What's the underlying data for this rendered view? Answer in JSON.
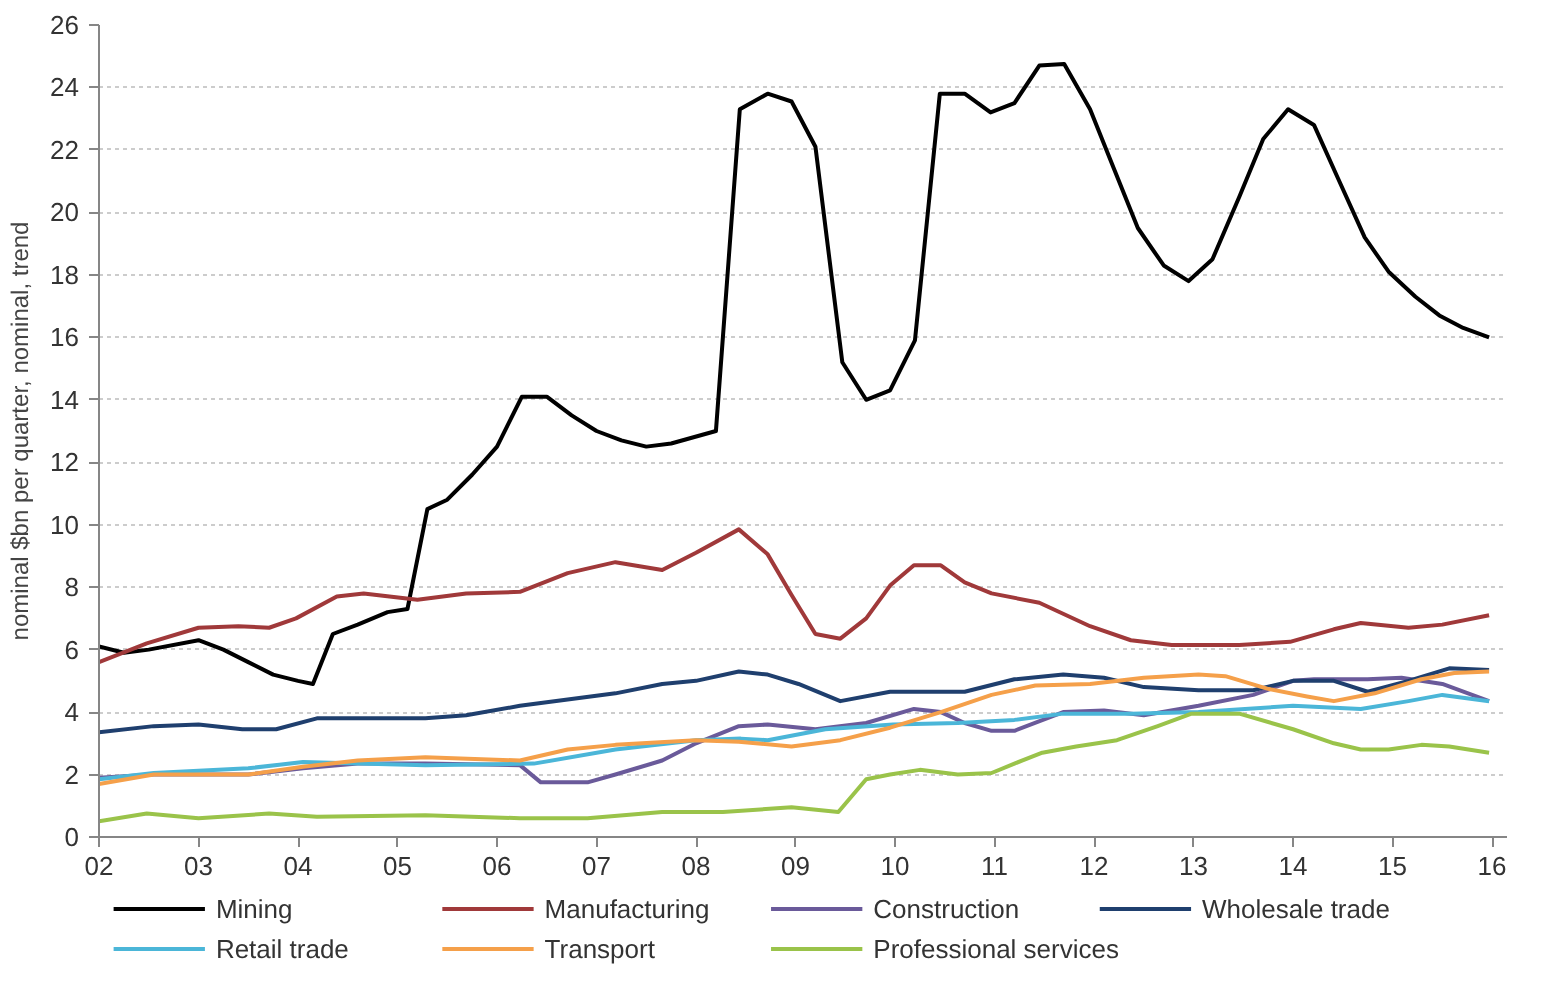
{
  "chart_data": {
    "type": "line",
    "ylabel": "nominal $bn per quarter, nominal, trend",
    "xlim": [
      2002,
      2016.15
    ],
    "ylim": [
      0,
      26
    ],
    "xticks": [
      {
        "value": 2002,
        "label": "02"
      },
      {
        "value": 2003,
        "label": "03"
      },
      {
        "value": 2004,
        "label": "04"
      },
      {
        "value": 2005,
        "label": "05"
      },
      {
        "value": 2006,
        "label": "06"
      },
      {
        "value": 2007,
        "label": "07"
      },
      {
        "value": 2008,
        "label": "08"
      },
      {
        "value": 2009,
        "label": "09"
      },
      {
        "value": 2010,
        "label": "10"
      },
      {
        "value": 2011,
        "label": "11"
      },
      {
        "value": 2012,
        "label": "12"
      },
      {
        "value": 2013,
        "label": "13"
      },
      {
        "value": 2014,
        "label": "14"
      },
      {
        "value": 2015,
        "label": "15"
      },
      {
        "value": 2016,
        "label": "16"
      }
    ],
    "yticks": [
      0,
      2,
      4,
      6,
      8,
      10,
      12,
      14,
      16,
      18,
      20,
      22,
      24,
      26
    ],
    "grid": "y",
    "legend": "bottom",
    "marker": "none",
    "line_style": "solid",
    "series": [
      {
        "name": "Mining",
        "color": "#000000",
        "x": [
          2002,
          2002.25,
          2002.5,
          2003,
          2003.25,
          2003.5,
          2003.75,
          2004,
          2004.15,
          2004.35,
          2004.6,
          2004.9,
          2005.1,
          2005.3,
          2005.5,
          2005.75,
          2006,
          2006.25,
          2006.5,
          2006.75,
          2007,
          2007.25,
          2007.5,
          2007.75,
          2008.2,
          2008.44,
          2008.72,
          2008.96,
          2009.2,
          2009.47,
          2009.71,
          2009.95,
          2010.2,
          2010.45,
          2010.7,
          2010.96,
          2011.2,
          2011.45,
          2011.7,
          2011.96,
          2012.2,
          2012.44,
          2012.7,
          2012.95,
          2013.19,
          2013.46,
          2013.7,
          2013.95,
          2014.21,
          2014.45,
          2014.72,
          2014.96,
          2015.23,
          2015.47,
          2015.71,
          2015.97
        ],
        "values": [
          6.1,
          5.9,
          6.0,
          6.3,
          6.0,
          5.6,
          5.2,
          5.0,
          4.9,
          6.5,
          6.8,
          7.2,
          7.3,
          10.5,
          10.8,
          11.6,
          12.5,
          14.1,
          14.1,
          13.5,
          13.0,
          12.7,
          12.5,
          12.6,
          13.0,
          23.3,
          23.8,
          23.55,
          22.1,
          15.2,
          14.0,
          14.3,
          15.9,
          23.8,
          23.8,
          23.2,
          23.5,
          24.7,
          24.75,
          23.3,
          21.4,
          19.5,
          18.3,
          17.8,
          18.5,
          20.5,
          22.35,
          23.3,
          22.8,
          21.1,
          19.2,
          18.1,
          17.3,
          16.7,
          16.3,
          16.0
        ]
      },
      {
        "name": "Manufacturing",
        "color": "#a0393a",
        "x": [
          2002,
          2002.48,
          2003,
          2003.4,
          2003.71,
          2003.98,
          2004.39,
          2004.66,
          2005.2,
          2005.69,
          2006.23,
          2006.71,
          2007.19,
          2007.66,
          2008,
          2008.43,
          2008.72,
          2008.96,
          2009.2,
          2009.45,
          2009.71,
          2009.95,
          2010.19,
          2010.46,
          2010.7,
          2010.97,
          2011.45,
          2011.96,
          2012.37,
          2012.78,
          2013.46,
          2013.97,
          2014.41,
          2014.68,
          2015.16,
          2015.5,
          2015.97
        ],
        "values": [
          5.6,
          6.2,
          6.7,
          6.75,
          6.7,
          7.0,
          7.7,
          7.8,
          7.6,
          7.8,
          7.85,
          8.45,
          8.8,
          8.55,
          9.1,
          9.85,
          9.05,
          7.75,
          6.5,
          6.35,
          7.0,
          8.05,
          8.7,
          8.7,
          8.15,
          7.8,
          7.5,
          6.75,
          6.3,
          6.15,
          6.15,
          6.25,
          6.65,
          6.85,
          6.7,
          6.8,
          7.1
        ]
      },
      {
        "name": "Construction",
        "color": "#6a5a9a",
        "x": [
          2002,
          2002.55,
          2003.5,
          2004.05,
          2004.6,
          2005.28,
          2006.23,
          2006.44,
          2006.91,
          2007.19,
          2007.66,
          2008,
          2008.43,
          2008.72,
          2009.2,
          2009.71,
          2010.19,
          2010.46,
          2010.7,
          2010.97,
          2011.2,
          2011.69,
          2012.1,
          2012.5,
          2013.05,
          2013.6,
          2014,
          2014.21,
          2014.75,
          2015.09,
          2015.5,
          2015.97
        ],
        "values": [
          1.9,
          2.0,
          2.0,
          2.2,
          2.35,
          2.35,
          2.3,
          1.75,
          1.75,
          2.0,
          2.45,
          3.0,
          3.55,
          3.6,
          3.45,
          3.65,
          4.1,
          4.0,
          3.65,
          3.4,
          3.4,
          4.0,
          4.05,
          3.9,
          4.2,
          4.55,
          5.0,
          5.05,
          5.05,
          5.1,
          4.9,
          4.35
        ]
      },
      {
        "name": "Wholesale trade",
        "color": "#1f3f6e",
        "x": [
          2002,
          2002.55,
          2003,
          2003.44,
          2003.78,
          2004.19,
          2004.6,
          2005.28,
          2005.69,
          2006.23,
          2006.71,
          2007.19,
          2007.66,
          2008,
          2008.43,
          2008.72,
          2009.03,
          2009.45,
          2009.95,
          2010.46,
          2010.7,
          2011.2,
          2011.69,
          2012.1,
          2012.5,
          2013.05,
          2013.6,
          2014,
          2014.41,
          2014.75,
          2015.16,
          2015.57,
          2015.97
        ],
        "values": [
          3.35,
          3.55,
          3.6,
          3.45,
          3.45,
          3.8,
          3.8,
          3.8,
          3.9,
          4.2,
          4.4,
          4.6,
          4.9,
          5.0,
          5.3,
          5.2,
          4.9,
          4.35,
          4.65,
          4.65,
          4.65,
          5.05,
          5.2,
          5.1,
          4.8,
          4.7,
          4.7,
          5.0,
          5.0,
          4.65,
          5.0,
          5.4,
          5.35
        ]
      },
      {
        "name": "Retail trade",
        "color": "#4bb6d8",
        "x": [
          2002,
          2002.55,
          2003.5,
          2004.05,
          2005.28,
          2006.37,
          2007.19,
          2008,
          2008.45,
          2008.72,
          2009.3,
          2009.98,
          2010.63,
          2011.2,
          2011.69,
          2012.37,
          2013.05,
          2014,
          2014.68,
          2015.16,
          2015.5,
          2015.97
        ],
        "values": [
          1.85,
          2.05,
          2.2,
          2.4,
          2.3,
          2.35,
          2.8,
          3.1,
          3.15,
          3.1,
          3.45,
          3.6,
          3.65,
          3.75,
          3.95,
          3.95,
          4.0,
          4.2,
          4.1,
          4.35,
          4.55,
          4.35
        ]
      },
      {
        "name": "Transport",
        "color": "#f5a04a",
        "x": [
          2002,
          2002.55,
          2003.5,
          2004.05,
          2004.6,
          2005.28,
          2006.23,
          2006.71,
          2007.19,
          2008,
          2008.43,
          2008.96,
          2009.45,
          2009.95,
          2010.46,
          2010.97,
          2011.41,
          2011.96,
          2012.5,
          2013.05,
          2013.32,
          2013.74,
          2014.14,
          2014.41,
          2014.82,
          2015.29,
          2015.62,
          2015.97
        ],
        "values": [
          1.7,
          2.0,
          2.0,
          2.25,
          2.45,
          2.55,
          2.45,
          2.8,
          2.95,
          3.1,
          3.05,
          2.9,
          3.1,
          3.5,
          4.0,
          4.55,
          4.85,
          4.9,
          5.1,
          5.2,
          5.15,
          4.75,
          4.5,
          4.35,
          4.6,
          5.05,
          5.25,
          5.3
        ]
      },
      {
        "name": "Professional services",
        "color": "#9ac34a",
        "x": [
          2002,
          2002.48,
          2003,
          2003.71,
          2004.19,
          2005.28,
          2006.23,
          2006.91,
          2007.66,
          2008.27,
          2008.96,
          2009.43,
          2009.71,
          2009.95,
          2010.25,
          2010.63,
          2010.97,
          2011.2,
          2011.48,
          2011.82,
          2012.23,
          2012.64,
          2012.98,
          2013.46,
          2014,
          2014.41,
          2014.68,
          2014.96,
          2015.29,
          2015.57,
          2015.97
        ],
        "values": [
          0.5,
          0.75,
          0.6,
          0.75,
          0.65,
          0.7,
          0.6,
          0.6,
          0.8,
          0.8,
          0.95,
          0.8,
          1.85,
          2.0,
          2.15,
          2.0,
          2.05,
          2.35,
          2.7,
          2.9,
          3.1,
          3.55,
          3.95,
          3.95,
          3.45,
          3.0,
          2.8,
          2.8,
          2.95,
          2.9,
          2.7
        ]
      }
    ]
  }
}
